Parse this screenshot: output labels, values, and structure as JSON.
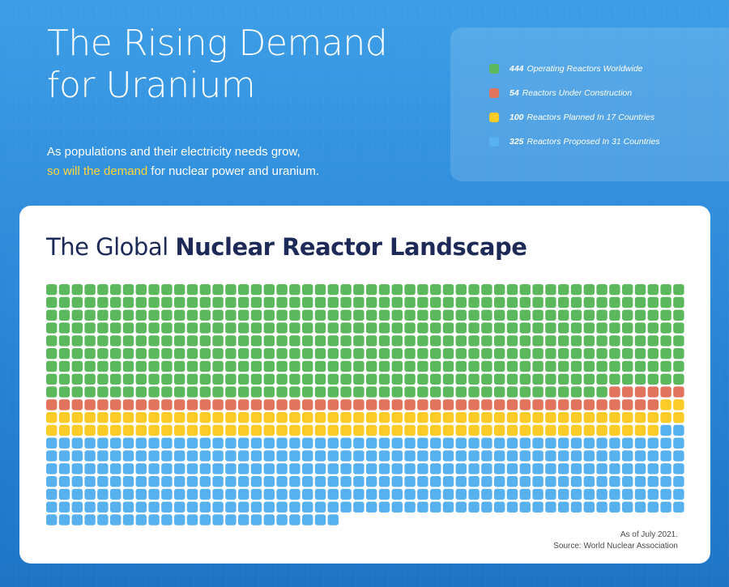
{
  "header": {
    "title_line1": "The Rising Demand",
    "title_line2": "for Uranium",
    "subtitle_line1": "As populations and their electricity needs grow,",
    "subtitle_highlight": "so will the demand",
    "subtitle_line2_rest": " for nuclear power and uranium.",
    "highlight_color": "#ffd43b"
  },
  "legend": {
    "items": [
      {
        "count": "444",
        "label": "Operating Reactors Worldwide",
        "color": "#5cb85c"
      },
      {
        "count": "54",
        "label": "Reactors Under Construction",
        "color": "#e2735c"
      },
      {
        "count": "100",
        "label": "Reactors Planned In 17 Countries",
        "color": "#fbcc27"
      },
      {
        "count": "325",
        "label": "Reactors Proposed In 31 Countries",
        "color": "#56b1ee"
      }
    ]
  },
  "card": {
    "title_light": "The Global ",
    "title_bold": "Nuclear Reactor Landscape",
    "note_line1": "As of July 2021.",
    "note_line2": "Source: World Nuclear Association"
  },
  "chart_data": {
    "type": "waffle",
    "columns": 50,
    "unit": "1 square = 1 reactor",
    "series": [
      {
        "name": "Operating Reactors Worldwide",
        "value": 444,
        "color": "#5cb85c"
      },
      {
        "name": "Reactors Under Construction",
        "value": 54,
        "color": "#e2735c"
      },
      {
        "name": "Reactors Planned In 17 Countries",
        "value": 100,
        "color": "#fbcc27"
      },
      {
        "name": "Reactors Proposed In 31 Countries",
        "value": 325,
        "color": "#56b1ee"
      }
    ]
  }
}
